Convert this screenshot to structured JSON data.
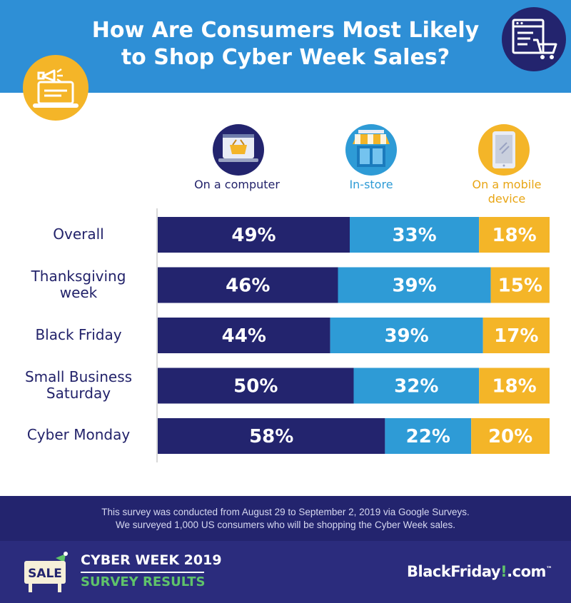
{
  "title_line1": "How Are Consumers Most Likely",
  "title_line2": "to Shop Cyber Week Sales?",
  "colors": {
    "header_bg": "#2e8fd6",
    "computer": "#23246e",
    "in_store": "#2e9bd6",
    "mobile": "#f4b528",
    "footer_dark": "#23246e",
    "footer_brand": "#2b2c7d",
    "accent_green": "#5fc36a"
  },
  "icons": {
    "header_left": "megaphone-laptop-icon",
    "header_right": "online-shopping-cart-icon",
    "computer": "laptop-basket-icon",
    "in_store": "storefront-icon",
    "mobile": "tablet-icon"
  },
  "chart_data": {
    "type": "bar",
    "orientation": "horizontal",
    "stacked": true,
    "normalized_percent": true,
    "categories": [
      "Overall",
      "Thanksgiving week",
      "Black Friday",
      "Small Business Saturday",
      "Cyber Monday"
    ],
    "category_lines": [
      [
        "Overall"
      ],
      [
        "Thanksgiving",
        "week"
      ],
      [
        "Black Friday"
      ],
      [
        "Small Business",
        "Saturday"
      ],
      [
        "Cyber Monday"
      ]
    ],
    "series": [
      {
        "name": "On a computer",
        "name_lines": [
          "On a computer"
        ],
        "values": [
          49,
          46,
          44,
          50,
          58
        ],
        "labels": [
          "49%",
          "46%",
          "44%",
          "50%",
          "58%"
        ]
      },
      {
        "name": "In-store",
        "name_lines": [
          "In-store"
        ],
        "values": [
          33,
          39,
          39,
          32,
          22
        ],
        "labels": [
          "33%",
          "39%",
          "39%",
          "32%",
          "22%"
        ]
      },
      {
        "name": "On a mobile device",
        "name_lines": [
          "On a mobile",
          "device"
        ],
        "values": [
          18,
          15,
          17,
          18,
          20
        ],
        "labels": [
          "18%",
          "15%",
          "17%",
          "18%",
          "20%"
        ]
      }
    ],
    "xlim": [
      0,
      100
    ],
    "legend": "top",
    "grid": false
  },
  "footnote_line1": "This survey was conducted from August 29 to September 2, 2019 via Google Surveys.",
  "footnote_line2": "We surveyed 1,000 US consumers who will be shopping the Cyber Week sales.",
  "sale_sign_text": "SALE",
  "footer_title": "CYBER WEEK 2019",
  "footer_subtitle": "SURVEY RESULTS",
  "brand_name": "BlackFriday",
  "brand_mark": "!",
  "brand_suffix": ".com",
  "brand_tm": "™"
}
